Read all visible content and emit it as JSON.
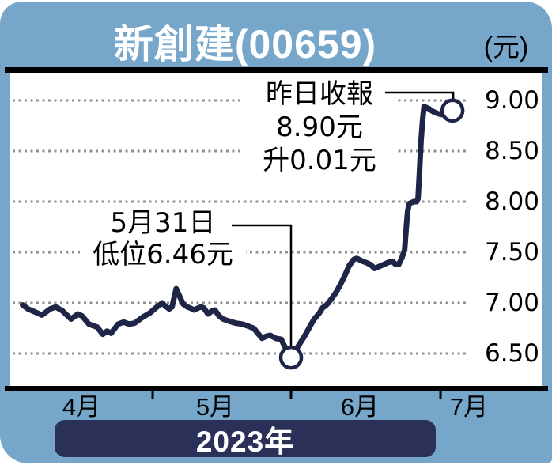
{
  "header": {
    "unit_label": "(元)"
  },
  "footer": {
    "year_label": "2023年"
  },
  "colors": {
    "panel_blue": "#76a7ca",
    "line_navy": "#1f2547",
    "banner_navy": "#2b3058",
    "grid_gray": "#909090",
    "text_black": "#000000",
    "marker_fill": "#ffffff"
  },
  "chart_data": {
    "type": "line",
    "title": "新創建(00659)",
    "unit_label": "(元)",
    "x_axis": {
      "tick_labels": [
        "4月",
        "5月",
        "6月",
        "7月"
      ],
      "year_label": "2023年",
      "boundary_ticks_months": [
        5,
        6,
        7
      ]
    },
    "y_axis": {
      "tick_labels": [
        "9.00",
        "8.50",
        "8.00",
        "7.50",
        "7.00",
        "6.50"
      ],
      "ticks": [
        9.0,
        8.5,
        8.0,
        7.5,
        7.0,
        6.5
      ],
      "ylim": [
        6.17,
        9.27
      ],
      "grid": "dotted"
    },
    "series": [
      {
        "points": [
          [
            4.06,
            6.98
          ],
          [
            4.1,
            6.94
          ],
          [
            4.15,
            6.91
          ],
          [
            4.2,
            6.88
          ],
          [
            4.26,
            6.94
          ],
          [
            4.3,
            6.96
          ],
          [
            4.35,
            6.92
          ],
          [
            4.41,
            6.84
          ],
          [
            4.46,
            6.89
          ],
          [
            4.49,
            6.87
          ],
          [
            4.54,
            6.79
          ],
          [
            4.6,
            6.76
          ],
          [
            4.64,
            6.69
          ],
          [
            4.67,
            6.72
          ],
          [
            4.7,
            6.7
          ],
          [
            4.75,
            6.79
          ],
          [
            4.79,
            6.81
          ],
          [
            4.83,
            6.79
          ],
          [
            4.87,
            6.8
          ],
          [
            4.93,
            6.86
          ],
          [
            4.98,
            6.9
          ],
          [
            5.04,
            6.97
          ],
          [
            5.07,
            7.0
          ],
          [
            5.09,
            6.97
          ],
          [
            5.12,
            6.94
          ],
          [
            5.14,
            6.96
          ],
          [
            5.17,
            7.14
          ],
          [
            5.19,
            7.08
          ],
          [
            5.22,
            6.99
          ],
          [
            5.25,
            6.96
          ],
          [
            5.27,
            6.95
          ],
          [
            5.3,
            6.93
          ],
          [
            5.33,
            6.95
          ],
          [
            5.35,
            6.96
          ],
          [
            5.37,
            6.95
          ],
          [
            5.4,
            6.89
          ],
          [
            5.43,
            6.92
          ],
          [
            5.45,
            6.93
          ],
          [
            5.48,
            6.87
          ],
          [
            5.51,
            6.84
          ],
          [
            5.55,
            6.82
          ],
          [
            5.6,
            6.8
          ],
          [
            5.65,
            6.79
          ],
          [
            5.69,
            6.77
          ],
          [
            5.73,
            6.75
          ],
          [
            5.76,
            6.7
          ],
          [
            5.79,
            6.65
          ],
          [
            5.82,
            6.67
          ],
          [
            5.85,
            6.68
          ],
          [
            5.89,
            6.65
          ],
          [
            5.93,
            6.64
          ],
          [
            5.95,
            6.58
          ],
          [
            5.98,
            6.51
          ],
          [
            6.0,
            6.46
          ],
          [
            6.03,
            6.53
          ],
          [
            6.06,
            6.6
          ],
          [
            6.09,
            6.67
          ],
          [
            6.12,
            6.75
          ],
          [
            6.15,
            6.83
          ],
          [
            6.19,
            6.9
          ],
          [
            6.21,
            6.95
          ],
          [
            6.23,
            6.97
          ],
          [
            6.25,
            7.0
          ],
          [
            6.27,
            7.04
          ],
          [
            6.3,
            7.1
          ],
          [
            6.33,
            7.18
          ],
          [
            6.36,
            7.27
          ],
          [
            6.39,
            7.37
          ],
          [
            6.42,
            7.43
          ],
          [
            6.44,
            7.44
          ],
          [
            6.48,
            7.41
          ],
          [
            6.5,
            7.4
          ],
          [
            6.53,
            7.38
          ],
          [
            6.56,
            7.34
          ],
          [
            6.59,
            7.36
          ],
          [
            6.62,
            7.38
          ],
          [
            6.65,
            7.4
          ],
          [
            6.68,
            7.41
          ],
          [
            6.7,
            7.38
          ],
          [
            6.72,
            7.38
          ],
          [
            6.74,
            7.44
          ],
          [
            6.76,
            7.52
          ],
          [
            6.77,
            7.72
          ],
          [
            6.78,
            7.9
          ],
          [
            6.79,
            7.98
          ],
          [
            6.82,
            8.0
          ],
          [
            6.84,
            8.0
          ],
          [
            6.85,
            8.03
          ],
          [
            6.86,
            8.3
          ],
          [
            6.87,
            8.6
          ],
          [
            6.88,
            8.8
          ],
          [
            6.89,
            8.94
          ],
          [
            6.92,
            8.92
          ],
          [
            6.95,
            8.89
          ],
          [
            6.98,
            8.87
          ],
          [
            7.01,
            8.86
          ],
          [
            7.08,
            8.9
          ]
        ]
      }
    ],
    "markers": [
      {
        "name": "low",
        "x": 6.0,
        "value": 6.46
      },
      {
        "name": "close",
        "x": 7.08,
        "value": 8.9
      }
    ],
    "annotations": [
      {
        "name": "close-note",
        "lines": [
          "昨日收報",
          "8.90元",
          "升0.01元"
        ]
      },
      {
        "name": "low-note",
        "lines": [
          "5月31日",
          "低位6.46元"
        ]
      }
    ]
  }
}
